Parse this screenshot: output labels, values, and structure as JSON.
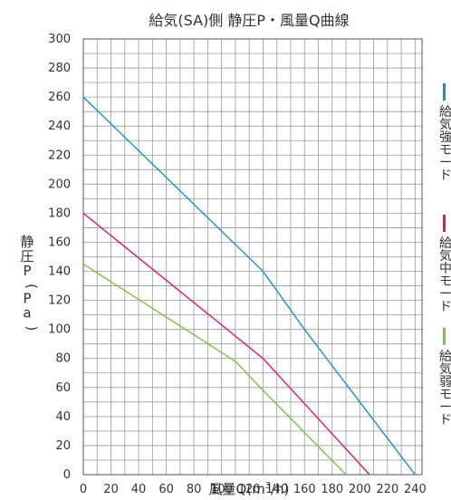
{
  "chart_data": {
    "type": "line",
    "title": "給気(SA)側 静圧P・風量Q曲線",
    "xlabel": "風量Q(m³/h)",
    "ylabel": "静圧P(Pa)",
    "xlim": [
      0,
      245
    ],
    "ylim": [
      0,
      300
    ],
    "x_ticks": [
      0,
      20,
      40,
      60,
      80,
      100,
      120,
      140,
      160,
      180,
      200,
      220,
      240
    ],
    "y_ticks": [
      0,
      20,
      40,
      60,
      80,
      100,
      120,
      140,
      160,
      180,
      200,
      220,
      240,
      260,
      280,
      300
    ],
    "grid": true,
    "legend_position": "right",
    "series": [
      {
        "name": "給気強モード",
        "color": "#1a8fcf",
        "x": [
          0,
          130,
          160,
          240
        ],
        "y": [
          260,
          140,
          100,
          0
        ]
      },
      {
        "name": "給気中モード",
        "color": "#e0147a",
        "x": [
          0,
          130,
          207
        ],
        "y": [
          180,
          80,
          0
        ]
      },
      {
        "name": "給気弱モード",
        "color": "#7cc242",
        "x": [
          0,
          110,
          130,
          190
        ],
        "y": [
          145,
          78,
          58,
          0
        ]
      }
    ]
  }
}
